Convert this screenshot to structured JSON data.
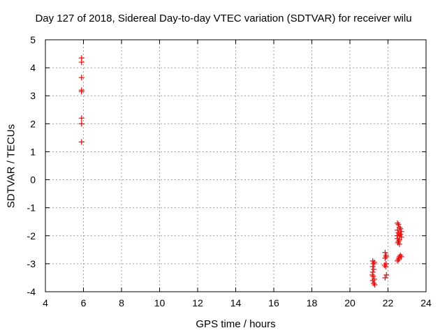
{
  "chart_data": {
    "type": "scatter",
    "title": "Day 127 of 2018, Sidereal Day-to-day VTEC variation (SDTVAR) for receiver wilu",
    "xlabel": "GPS time / hours",
    "ylabel": "SDTVAR / TECUs",
    "xlim": [
      4,
      24
    ],
    "ylim": [
      -4,
      5
    ],
    "xticks": [
      4,
      6,
      8,
      10,
      12,
      14,
      16,
      18,
      20,
      22,
      24
    ],
    "yticks": [
      -4,
      -3,
      -2,
      -1,
      0,
      1,
      2,
      3,
      4,
      5
    ],
    "grid": true,
    "marker": "+",
    "color": "#ff0000",
    "series": [
      {
        "name": "SDTVAR",
        "points": [
          [
            5.9,
            4.35
          ],
          [
            5.9,
            4.2
          ],
          [
            5.9,
            3.65
          ],
          [
            5.9,
            3.2
          ],
          [
            5.9,
            3.15
          ],
          [
            5.9,
            2.2
          ],
          [
            5.9,
            2.0
          ],
          [
            5.9,
            1.35
          ],
          [
            21.2,
            -2.9
          ],
          [
            21.25,
            -3.0
          ],
          [
            21.2,
            -3.1
          ],
          [
            21.25,
            -3.2
          ],
          [
            21.2,
            -3.3
          ],
          [
            21.22,
            -3.45
          ],
          [
            21.28,
            -3.55
          ],
          [
            21.2,
            -3.6
          ],
          [
            21.25,
            -3.7
          ],
          [
            21.3,
            -3.75
          ],
          [
            21.18,
            -3.4
          ],
          [
            21.28,
            -2.95
          ],
          [
            21.85,
            -2.6
          ],
          [
            21.9,
            -2.7
          ],
          [
            21.85,
            -2.8
          ],
          [
            21.9,
            -3.0
          ],
          [
            21.88,
            -3.1
          ],
          [
            21.92,
            -3.4
          ],
          [
            21.85,
            -3.5
          ],
          [
            21.9,
            -2.75
          ],
          [
            21.82,
            -3.05
          ],
          [
            22.5,
            -1.55
          ],
          [
            22.55,
            -1.6
          ],
          [
            22.6,
            -1.7
          ],
          [
            22.5,
            -1.8
          ],
          [
            22.55,
            -1.9
          ],
          [
            22.6,
            -2.0
          ],
          [
            22.5,
            -2.1
          ],
          [
            22.55,
            -2.2
          ],
          [
            22.6,
            -2.3
          ],
          [
            22.65,
            -1.75
          ],
          [
            22.7,
            -1.85
          ],
          [
            22.65,
            -1.95
          ],
          [
            22.7,
            -2.05
          ],
          [
            22.6,
            -2.15
          ],
          [
            22.52,
            -2.25
          ],
          [
            22.48,
            -2.0
          ],
          [
            22.58,
            -2.8
          ],
          [
            22.6,
            -2.75
          ],
          [
            22.65,
            -2.7
          ],
          [
            22.55,
            -2.85
          ],
          [
            22.5,
            -2.9
          ],
          [
            22.7,
            -2.75
          ]
        ]
      }
    ]
  }
}
